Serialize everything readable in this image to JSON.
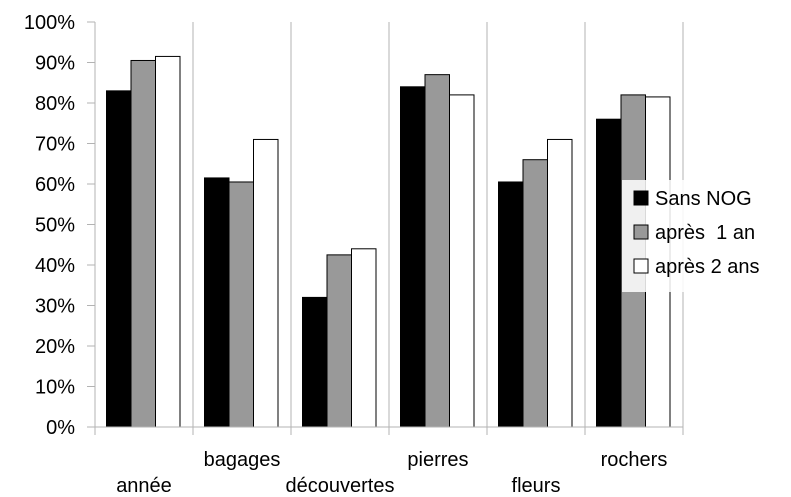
{
  "chart_data": {
    "type": "bar",
    "categories": [
      "année",
      "bagages",
      "découvertes",
      "pierres",
      "fleurs",
      "rochers"
    ],
    "series": [
      {
        "name": "Sans NOG",
        "color": "#000000",
        "values": [
          83,
          61.5,
          32,
          84,
          60.5,
          76
        ]
      },
      {
        "name": "après  1 an",
        "color": "#999999",
        "values": [
          90.5,
          60.5,
          42.5,
          87,
          66,
          82
        ]
      },
      {
        "name": "après 2 ans",
        "color": "#ffffff",
        "values": [
          91.5,
          71,
          44,
          82,
          71,
          81.5
        ]
      }
    ],
    "yticks": [
      "0%",
      "10%",
      "20%",
      "30%",
      "40%",
      "50%",
      "60%",
      "70%",
      "80%",
      "90%",
      "100%"
    ],
    "ylim": [
      0,
      100
    ],
    "grid": "vertical category separators",
    "legend_position": "right"
  }
}
